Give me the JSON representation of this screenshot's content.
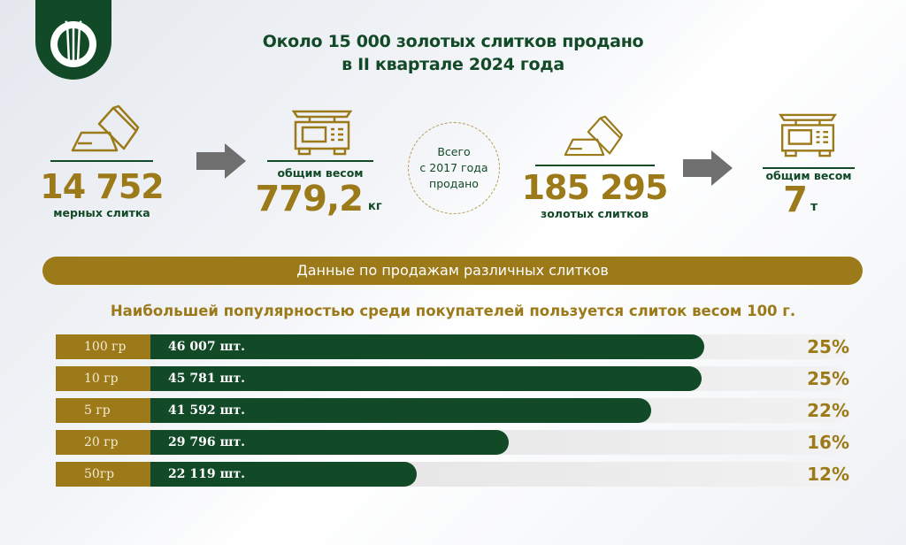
{
  "title_line1": "Около 15 000 золотых слитков продано",
  "title_line2": "в II квартале 2024 года",
  "stats": {
    "q_bars_value": "14 752",
    "q_bars_label": "мерных слитка",
    "q_weight_label": "общим весом",
    "q_weight_value": "779,2",
    "q_weight_unit": "кг",
    "total_circle_line1": "Всего",
    "total_circle_line2": "с 2017 года",
    "total_circle_line3": "продано",
    "total_bars_value": "185 295",
    "total_bars_label": "золотых слитков",
    "total_weight_label": "общим весом",
    "total_weight_value": "7",
    "total_weight_unit": "т"
  },
  "section_title": "Данные по продажам различных слитков",
  "section_subtitle": "Наибольшей популярностью среди покупателей пользуется слиток весом 100 г.",
  "colors": {
    "green": "#124a28",
    "gold": "#9c7a1a",
    "arrow": "#6f6f6f"
  },
  "chart_data": {
    "type": "bar",
    "orientation": "horizontal",
    "categories": [
      "100 гр",
      "10 гр",
      "5 гр",
      "20 гр",
      "50гр"
    ],
    "values": [
      46007,
      45781,
      41592,
      29796,
      22119
    ],
    "value_labels": [
      "46 007 шт.",
      "45 781 шт.",
      "41 592 шт.",
      "29 796 шт.",
      "22 119 шт."
    ],
    "percent_labels": [
      "25%",
      "25%",
      "22%",
      "16%",
      "12%"
    ]
  }
}
